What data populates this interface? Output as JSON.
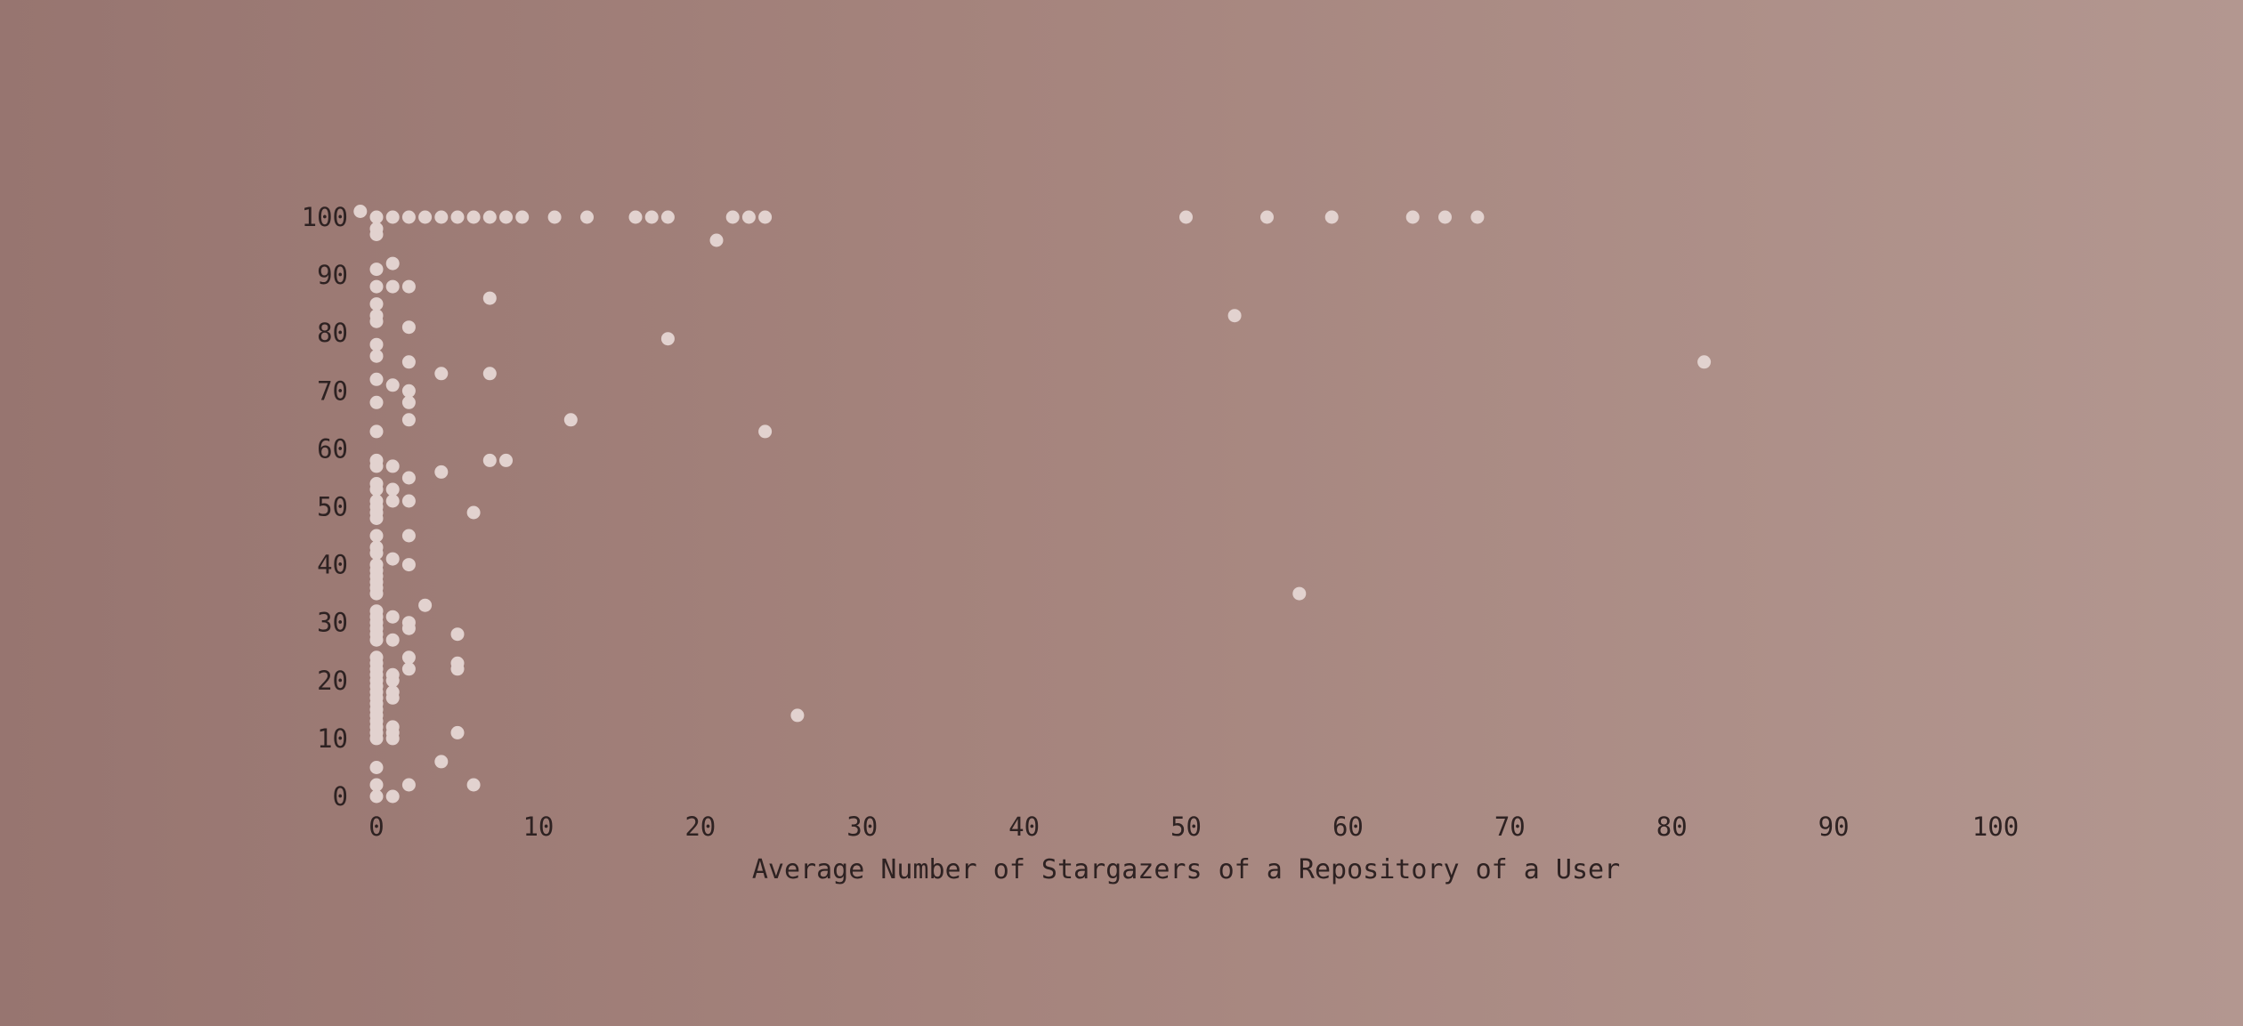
{
  "chart_data": {
    "type": "scatter",
    "title": "",
    "xlabel": "Average Number of Stargazers of a Repository of a User",
    "ylabel": "",
    "xlim": [
      0,
      100
    ],
    "ylim": [
      0,
      100
    ],
    "xticks": [
      "0",
      "10",
      "20",
      "30",
      "40",
      "50",
      "60",
      "70",
      "80",
      "90",
      "100"
    ],
    "yticks": [
      "0",
      "10",
      "20",
      "30",
      "40",
      "50",
      "60",
      "70",
      "80",
      "90",
      "100"
    ],
    "grid": false,
    "legend": "none",
    "colors": {
      "point": "#e2d2cf",
      "text": "#2e2222",
      "background_left": "#977570",
      "background_right": "#b39790"
    },
    "points": [
      [
        -1,
        101
      ],
      [
        0,
        100
      ],
      [
        1,
        100
      ],
      [
        2,
        100
      ],
      [
        3,
        100
      ],
      [
        4,
        100
      ],
      [
        5,
        100
      ],
      [
        6,
        100
      ],
      [
        7,
        100
      ],
      [
        8,
        100
      ],
      [
        9,
        100
      ],
      [
        11,
        100
      ],
      [
        13,
        100
      ],
      [
        16,
        100
      ],
      [
        17,
        100
      ],
      [
        18,
        100
      ],
      [
        22,
        100
      ],
      [
        23,
        100
      ],
      [
        24,
        100
      ],
      [
        50,
        100
      ],
      [
        55,
        100
      ],
      [
        59,
        100
      ],
      [
        64,
        100
      ],
      [
        66,
        100
      ],
      [
        68,
        100
      ],
      [
        0,
        98
      ],
      [
        0,
        97
      ],
      [
        21,
        96
      ],
      [
        0,
        91
      ],
      [
        1,
        92
      ],
      [
        0,
        88
      ],
      [
        1,
        88
      ],
      [
        2,
        88
      ],
      [
        7,
        86
      ],
      [
        0,
        85
      ],
      [
        0,
        83
      ],
      [
        0,
        82
      ],
      [
        2,
        81
      ],
      [
        53,
        83
      ],
      [
        18,
        79
      ],
      [
        0,
        78
      ],
      [
        0,
        76
      ],
      [
        2,
        75
      ],
      [
        82,
        75
      ],
      [
        4,
        73
      ],
      [
        7,
        73
      ],
      [
        0,
        72
      ],
      [
        1,
        71
      ],
      [
        2,
        70
      ],
      [
        0,
        68
      ],
      [
        2,
        68
      ],
      [
        2,
        65
      ],
      [
        12,
        65
      ],
      [
        0,
        63
      ],
      [
        24,
        63
      ],
      [
        0,
        58
      ],
      [
        7,
        58
      ],
      [
        8,
        58
      ],
      [
        0,
        57
      ],
      [
        1,
        57
      ],
      [
        4,
        56
      ],
      [
        2,
        55
      ],
      [
        0,
        54
      ],
      [
        0,
        53
      ],
      [
        1,
        53
      ],
      [
        0,
        51
      ],
      [
        1,
        51
      ],
      [
        2,
        51
      ],
      [
        0,
        50
      ],
      [
        0,
        49
      ],
      [
        6,
        49
      ],
      [
        0,
        48
      ],
      [
        0,
        45
      ],
      [
        2,
        45
      ],
      [
        0,
        43
      ],
      [
        0,
        42
      ],
      [
        1,
        41
      ],
      [
        0,
        40
      ],
      [
        2,
        40
      ],
      [
        0,
        39
      ],
      [
        0,
        38
      ],
      [
        0,
        37
      ],
      [
        0,
        36
      ],
      [
        0,
        35
      ],
      [
        57,
        35
      ],
      [
        3,
        33
      ],
      [
        0,
        32
      ],
      [
        0,
        31
      ],
      [
        1,
        31
      ],
      [
        0,
        30
      ],
      [
        2,
        30
      ],
      [
        0,
        29
      ],
      [
        2,
        29
      ],
      [
        0,
        28
      ],
      [
        5,
        28
      ],
      [
        0,
        27
      ],
      [
        1,
        27
      ],
      [
        0,
        24
      ],
      [
        2,
        24
      ],
      [
        0,
        23
      ],
      [
        5,
        23
      ],
      [
        0,
        22
      ],
      [
        2,
        22
      ],
      [
        5,
        22
      ],
      [
        0,
        21
      ],
      [
        1,
        21
      ],
      [
        0,
        20
      ],
      [
        1,
        20
      ],
      [
        0,
        19
      ],
      [
        0,
        18
      ],
      [
        1,
        18
      ],
      [
        0,
        17
      ],
      [
        1,
        17
      ],
      [
        0,
        16
      ],
      [
        0,
        15
      ],
      [
        0,
        14
      ],
      [
        26,
        14
      ],
      [
        0,
        13
      ],
      [
        0,
        12
      ],
      [
        1,
        12
      ],
      [
        0,
        11
      ],
      [
        1,
        11
      ],
      [
        5,
        11
      ],
      [
        0,
        10
      ],
      [
        1,
        10
      ],
      [
        4,
        6
      ],
      [
        0,
        5
      ],
      [
        0,
        2
      ],
      [
        2,
        2
      ],
      [
        6,
        2
      ],
      [
        0,
        0
      ],
      [
        1,
        0
      ]
    ]
  }
}
